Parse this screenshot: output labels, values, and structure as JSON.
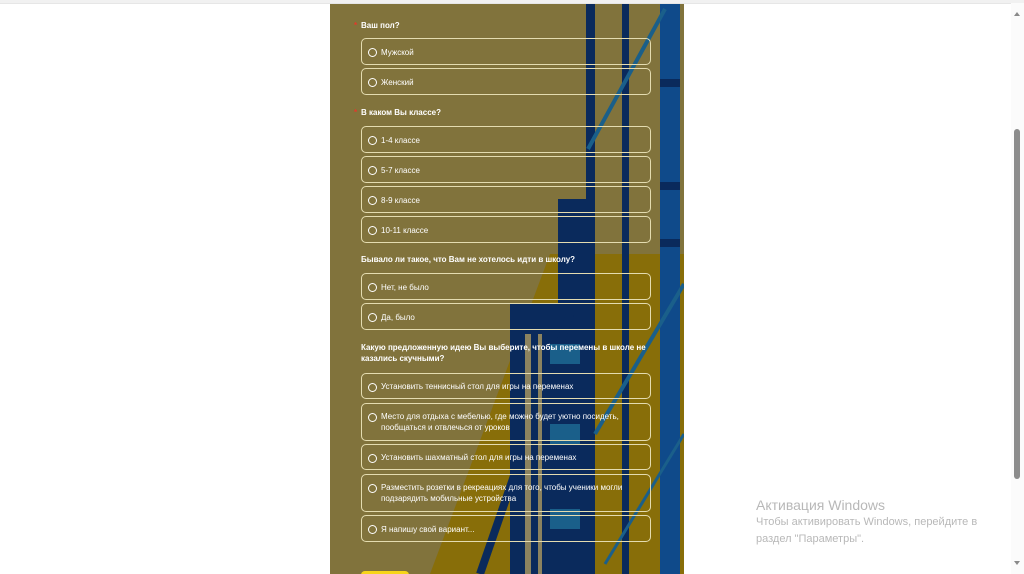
{
  "form": {
    "questions": [
      {
        "title": "Ваш пол?",
        "required": true,
        "options": [
          "Мужской",
          "Женский"
        ]
      },
      {
        "title": "В каком Вы классе?",
        "required": true,
        "options": [
          "1-4 классе",
          "5-7 классе",
          "8-9 классе",
          "10-11 классе"
        ]
      },
      {
        "title": "Бывало ли такое, что Вам не хотелось идти в школу?",
        "required": false,
        "options": [
          "Нет, не было",
          "Да, было"
        ]
      },
      {
        "title": "Какую предложенную идею Вы выберите, чтобы перемены в школе не казались скучными?",
        "required": false,
        "options": [
          "Установить теннисный стол для игры на переменах",
          "Место для отдыха с мебелью, где можно будет уютно посидеть, пообщаться и отвлечься от уроков",
          "Установить шахматный стол для игры на переменах",
          "Разместить розетки в рекреациях для того, чтобы ученики могли подзарядить мобильные устройства",
          "Я напишу свой вариант..."
        ]
      }
    ],
    "required_mark": "*"
  },
  "colors": {
    "panel_bg": "#81733c",
    "navy": "#0a2a5c",
    "blue": "#0f4a8a",
    "gold": "#8a6d00",
    "submit": "#f7d51a",
    "required": "#e3382b"
  },
  "watermark": {
    "title": "Активация Windows",
    "text": "Чтобы активировать Windows, перейдите в раздел \"Параметры\"."
  }
}
